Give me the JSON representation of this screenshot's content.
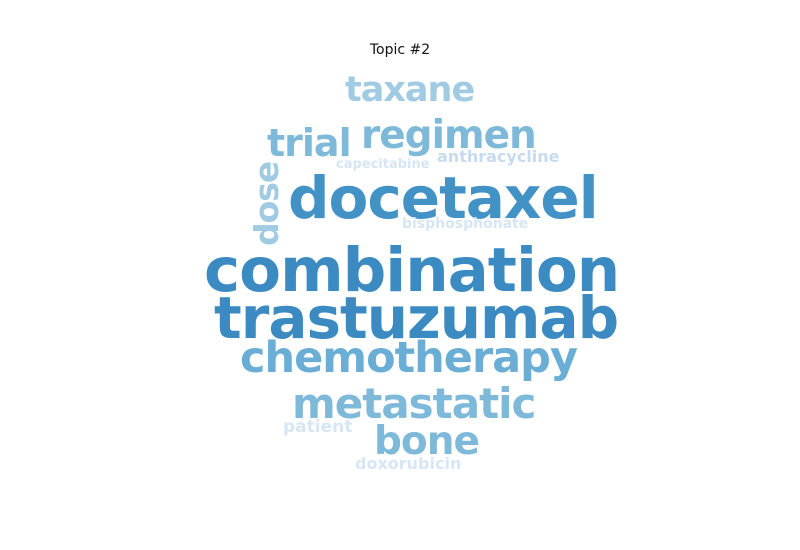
{
  "title": "Topic #2",
  "words": [
    {
      "key": "combination",
      "text": "combination",
      "color": "#3b8bc2"
    },
    {
      "key": "trastuzumab",
      "text": "trastuzumab",
      "color": "#3b8bc2"
    },
    {
      "key": "docetaxel",
      "text": "docetaxel",
      "color": "#4292c6"
    },
    {
      "key": "chemotherapy",
      "text": "chemotherapy",
      "color": "#6aaed6"
    },
    {
      "key": "metastatic",
      "text": "metastatic",
      "color": "#7fb9da"
    },
    {
      "key": "regimen",
      "text": "regimen",
      "color": "#7fb9da"
    },
    {
      "key": "bone",
      "text": "bone",
      "color": "#7fb9da"
    },
    {
      "key": "trial",
      "text": "trial",
      "color": "#7fb9da"
    },
    {
      "key": "taxane",
      "text": "taxane",
      "color": "#a0cbe2"
    },
    {
      "key": "dose",
      "text": "dose",
      "color": "#a0cbe2"
    },
    {
      "key": "anthracycline",
      "text": "anthracycline",
      "color": "#c6dbef"
    },
    {
      "key": "capecitabine",
      "text": "capecitabine",
      "color": "#d6e6f4"
    },
    {
      "key": "bisphosphonate",
      "text": "bisphosphonate",
      "color": "#d6e6f4"
    },
    {
      "key": "patient",
      "text": "patient",
      "color": "#d6e6f4"
    },
    {
      "key": "doxorubicin",
      "text": "doxorubicin",
      "color": "#d6e6f4"
    }
  ]
}
